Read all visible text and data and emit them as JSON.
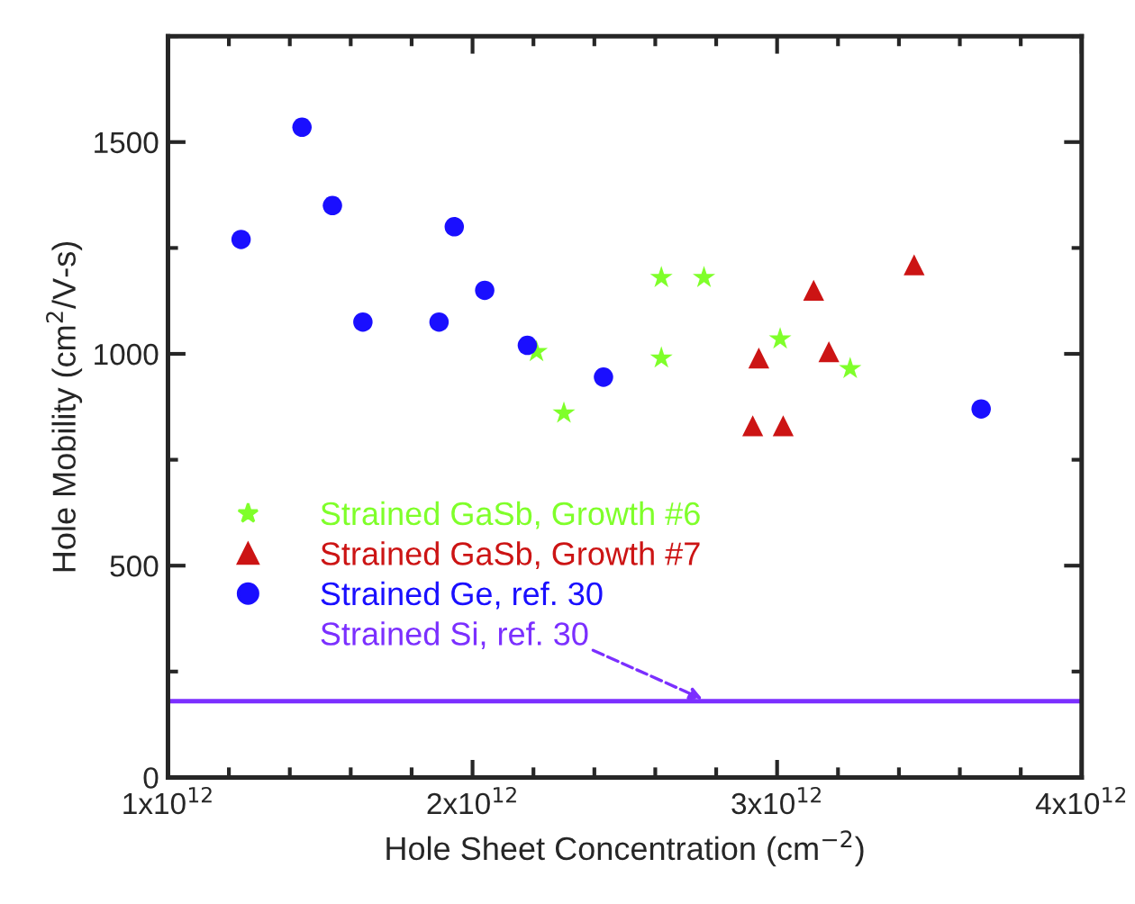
{
  "chart_data": {
    "type": "scatter",
    "xlabel": "Hole Sheet Concentration (cm$^{−2}$)",
    "ylabel": "Hole Mobility (cm$^{2}$/V-s)",
    "xlim": [
      1000000000000.0,
      4000000000000.0
    ],
    "xticks": [
      {
        "value": 1000000000000.0,
        "label": "1x10$^{12}$"
      },
      {
        "value": 2000000000000.0,
        "label": "2x10$^{12}$"
      },
      {
        "value": 3000000000000.0,
        "label": "3x10$^{12}$"
      },
      {
        "value": 4000000000000.0,
        "label": "4x10$^{12}$"
      }
    ],
    "ylim": [
      0,
      1750
    ],
    "yticks": [
      0,
      500,
      1000,
      1500
    ],
    "grid": false,
    "legend": "bottom left",
    "series": [
      {
        "name": "Strained GaSb, Growth #6",
        "marker": "star",
        "color": "#7fff2a",
        "x": [
          2210000000000.0,
          2300000000000.0,
          2620000000000.0,
          2760000000000.0,
          2620000000000.0,
          3010000000000.0,
          3240000000000.0
        ],
        "values": [
          1005,
          860,
          1180,
          1180,
          990,
          1035,
          965
        ]
      },
      {
        "name": "Strained GaSb, Growth #7",
        "marker": "triangle",
        "color": "#cc1414",
        "x": [
          3450000000000.0,
          3120000000000.0,
          2940000000000.0,
          3170000000000.0,
          2920000000000.0,
          3020000000000.0
        ],
        "values": [
          1210,
          1150,
          990,
          1005,
          830,
          830
        ]
      },
      {
        "name": "Strained Ge, ref. 30",
        "marker": "circle",
        "color": "#1a0fff",
        "x": [
          1240000000000.0,
          1440000000000.0,
          1540000000000.0,
          1640000000000.0,
          1890000000000.0,
          1940000000000.0,
          2040000000000.0,
          2180000000000.0,
          2430000000000.0,
          3670000000000.0
        ],
        "values": [
          1270,
          1535,
          1350,
          1075,
          1075,
          1300,
          1150,
          1020,
          945,
          870
        ]
      },
      {
        "name": "Strained Si, ref. 30",
        "type": "line",
        "marker": "none",
        "color": "#7b2fff",
        "x": [
          1000000000000.0,
          4000000000000.0
        ],
        "values": [
          180,
          180
        ]
      }
    ]
  }
}
